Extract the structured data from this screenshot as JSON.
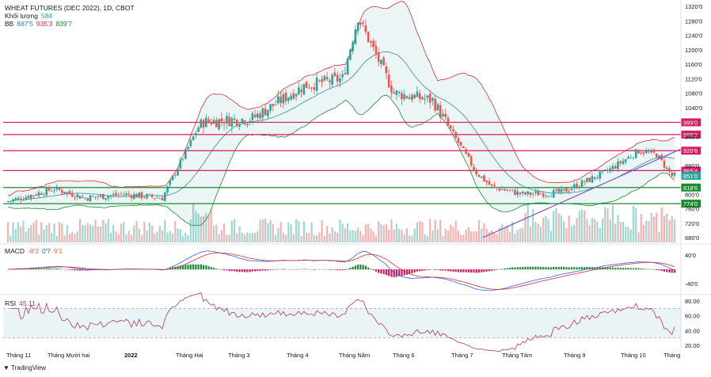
{
  "header": {
    "title": "WHEAT FUTURES (DEC 2022), 1D, CBOT",
    "volume_label": "Khối lượng",
    "volume_value": "584",
    "bb_label": "BB",
    "bb_basis": "887'5",
    "bb_upper": "935'3",
    "bb_lower": "839'7",
    "macd_label": "MACD",
    "macd_hist": "-8'2",
    "macd_line": "0'7",
    "macd_signal": "9'1",
    "rsi_label": "RSI",
    "rsi_value": "45.11"
  },
  "footer": {
    "brand": "TradingView"
  },
  "colors": {
    "up": "#26a69a",
    "down": "#ef5350",
    "hline_red": "#d81b60",
    "hline_green": "#1b8a2f",
    "trend": "#7e57c2",
    "bb_band": "#d32f2f",
    "bb_basis": "#2e8b9a",
    "rsi": "#b03a5a"
  },
  "chart_data": [
    {
      "type": "candlestick",
      "title": "WHEAT FUTURES (DEC 2022), 1D, CBOT",
      "y_axis": {
        "range": [
          680,
          1320
        ],
        "ticks": [
          "1320'0",
          "1280'0",
          "1240'0",
          "1200'0",
          "1160'0",
          "1120'0",
          "1080'0",
          "1040'0",
          "960'0",
          "880'0",
          "800'0",
          "760'0",
          "720'0",
          "680'0"
        ]
      },
      "x_axis": {
        "ticks": [
          "Tháng 11",
          "Tháng Mười hai",
          "2022",
          "Tháng Hai",
          "Tháng 3",
          "Tháng 4",
          "Tháng Năm",
          "Tháng 6",
          "Tháng 7",
          "Tháng Tám",
          "Tháng 9",
          "Tháng 10",
          "Tháng"
        ]
      },
      "horizontal_levels": [
        {
          "value": 999.0,
          "label": "999'0",
          "color": "red"
        },
        {
          "value": 965.2,
          "label": "965'2",
          "color": "red"
        },
        {
          "value": 920.6,
          "label": "920'6",
          "color": "red"
        },
        {
          "value": 865.4,
          "label": "865'4",
          "color": "red"
        },
        {
          "value": 818.6,
          "label": "818'6",
          "color": "green"
        },
        {
          "value": 774.0,
          "label": "774'0",
          "color": "green"
        }
      ],
      "last_price": {
        "value": 851.0,
        "label": "851'0"
      },
      "trendline": {
        "from": [
          "Tháng 7",
          680
        ],
        "to": [
          "Tháng",
          925
        ]
      },
      "key_points": [
        {
          "x": "Tháng 11",
          "close": 780
        },
        {
          "x": "Tháng Mười hai",
          "close": 810
        },
        {
          "x": "2022",
          "close": 790
        },
        {
          "x": "Tháng Hai",
          "close": 800
        },
        {
          "x": "Tháng 3",
          "close": 1000
        },
        {
          "x": "Tháng 4",
          "close": 1020
        },
        {
          "x": "Tháng Năm",
          "close": 1100
        },
        {
          "x": "peak",
          "close": 1290
        },
        {
          "x": "Tháng 6",
          "close": 1080
        },
        {
          "x": "Tháng 7",
          "close": 820
        },
        {
          "x": "Tháng Tám",
          "close": 800
        },
        {
          "x": "Tháng 9",
          "close": 860
        },
        {
          "x": "Tháng 10",
          "close": 910
        },
        {
          "x": "last",
          "close": 851
        }
      ]
    },
    {
      "type": "bar",
      "name": "MACD",
      "y_axis": {
        "ticks": [
          "40'0",
          "-40'0"
        ]
      },
      "values": {
        "hist": -8.25,
        "macd": 0.875,
        "signal": 9.125
      }
    },
    {
      "type": "line",
      "name": "RSI",
      "y_axis": {
        "ticks": [
          "80.00",
          "60.00",
          "40.00",
          "20.00"
        ]
      },
      "last": 45.11
    }
  ]
}
